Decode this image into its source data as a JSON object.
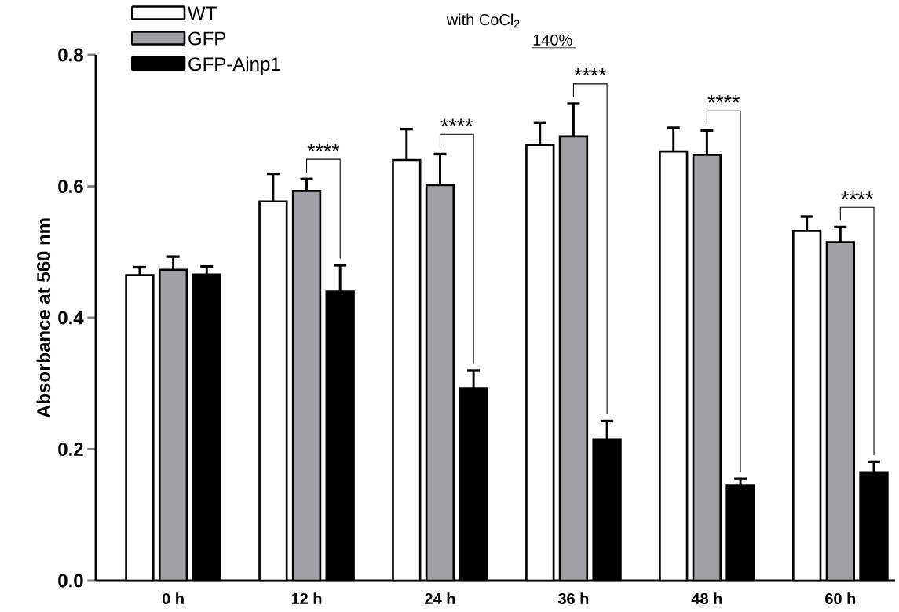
{
  "chart_data": {
    "type": "bar",
    "ylabel": "Absorbance at 560 nm",
    "categories": [
      "0 h",
      "12 h",
      "24 h",
      "36 h",
      "48 h",
      "60 h"
    ],
    "series": [
      {
        "name": "WT",
        "color": "#ffffff",
        "values": [
          0.465,
          0.577,
          0.64,
          0.663,
          0.653,
          0.532
        ],
        "errors": [
          0.012,
          0.042,
          0.047,
          0.034,
          0.036,
          0.022
        ]
      },
      {
        "name": "GFP",
        "color": "#a0a0a4",
        "values": [
          0.473,
          0.593,
          0.602,
          0.676,
          0.648,
          0.515
        ],
        "errors": [
          0.02,
          0.018,
          0.047,
          0.05,
          0.037,
          0.023
        ]
      },
      {
        "name": "GFP-Ainp1",
        "color": "#000000",
        "values": [
          0.466,
          0.44,
          0.293,
          0.215,
          0.145,
          0.165
        ],
        "errors": [
          0.012,
          0.04,
          0.027,
          0.028,
          0.01,
          0.016
        ]
      }
    ],
    "ylim": [
      0,
      0.8
    ],
    "yticks": [
      {
        "value": 0,
        "label": "0.0"
      },
      0.2,
      0.4,
      0.6,
      0.8
    ],
    "legend": "top left",
    "annotations": [
      "with CoCl$_{2}$",
      "140%",
      "****",
      "****",
      "****",
      "****",
      "****"
    ]
  }
}
